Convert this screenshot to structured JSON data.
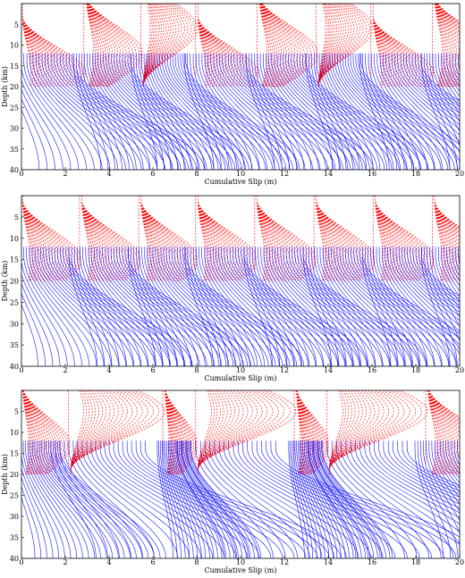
{
  "chart_data": [
    {
      "type": "line",
      "title": "",
      "xlabel": "Cumulative Slip (m)",
      "ylabel": "Depth (km)",
      "xlim": [
        0,
        20
      ],
      "ylim": [
        40,
        0
      ],
      "xticks": [
        "0",
        "2",
        "4",
        "6",
        "8",
        "10",
        "12",
        "14",
        "16",
        "18",
        "20"
      ],
      "yticks": [
        "5",
        "10",
        "15",
        "20",
        "25",
        "30",
        "35",
        "40"
      ],
      "series": [
        {
          "color": "#ff0000",
          "style": "dashed",
          "values": []
        },
        {
          "color": "#0000ff",
          "style": "solid",
          "values": []
        }
      ],
      "events": [
        {
          "slip": 0.0,
          "nucleation_depth": 17
        },
        {
          "slip": 2.9,
          "nucleation_depth": 12
        },
        {
          "slip": 5.5,
          "nucleation_depth": 6
        },
        {
          "slip": 8.0,
          "nucleation_depth": 17
        },
        {
          "slip": 10.8,
          "nucleation_depth": 12
        },
        {
          "slip": 13.5,
          "nucleation_depth": 6
        },
        {
          "slip": 16.0,
          "nucleation_depth": 17
        },
        {
          "slip": 18.8,
          "nucleation_depth": 12
        }
      ]
    },
    {
      "type": "line",
      "title": "",
      "xlabel": "Cumulative Slip (m)",
      "ylabel": "Depth (km)",
      "xlim": [
        0,
        20
      ],
      "ylim": [
        40,
        0
      ],
      "xticks": [
        "0",
        "2",
        "4",
        "6",
        "8",
        "10",
        "12",
        "14",
        "16",
        "18",
        "20"
      ],
      "yticks": [
        "5",
        "10",
        "15",
        "20",
        "25",
        "30",
        "35",
        "40"
      ],
      "series": [
        {
          "color": "#ff0000",
          "style": "dashed",
          "values": []
        },
        {
          "color": "#0000ff",
          "style": "solid",
          "values": []
        }
      ],
      "events": [
        {
          "slip": 0.0,
          "nucleation_depth": 15
        },
        {
          "slip": 2.7,
          "nucleation_depth": 15
        },
        {
          "slip": 5.4,
          "nucleation_depth": 15
        },
        {
          "slip": 8.0,
          "nucleation_depth": 15
        },
        {
          "slip": 10.7,
          "nucleation_depth": 15
        },
        {
          "slip": 13.4,
          "nucleation_depth": 15
        },
        {
          "slip": 16.1,
          "nucleation_depth": 15
        },
        {
          "slip": 18.8,
          "nucleation_depth": 15
        }
      ]
    },
    {
      "type": "line",
      "title": "",
      "xlabel": "Cumulative Slip (m)",
      "ylabel": "Depth (km)",
      "xlim": [
        0,
        20
      ],
      "ylim": [
        40,
        0
      ],
      "xticks": [
        "0",
        "2",
        "4",
        "6",
        "8",
        "10",
        "12",
        "14",
        "16",
        "18",
        "20"
      ],
      "yticks": [
        "5",
        "10",
        "15",
        "20",
        "25",
        "30",
        "35",
        "40"
      ],
      "series": [
        {
          "color": "#ff0000",
          "style": "dashed",
          "values": []
        },
        {
          "color": "#0000ff",
          "style": "solid",
          "values": []
        }
      ],
      "events": [
        {
          "slip": 0.0,
          "nucleation_depth": 13
        },
        {
          "slip": 2.2,
          "nucleation_depth": 5
        },
        {
          "slip": 6.5,
          "nucleation_depth": 13
        },
        {
          "slip": 8.0,
          "nucleation_depth": 5
        },
        {
          "slip": 12.5,
          "nucleation_depth": 13
        },
        {
          "slip": 14.0,
          "nucleation_depth": 5
        },
        {
          "slip": 18.5,
          "nucleation_depth": 13
        }
      ]
    }
  ]
}
